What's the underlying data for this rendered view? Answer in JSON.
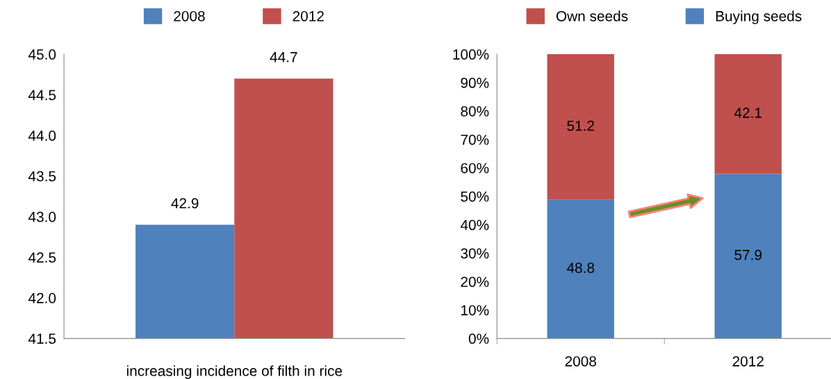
{
  "chart_data": [
    {
      "type": "bar",
      "categories": [
        "increasing incidence of filth in rice"
      ],
      "series": [
        {
          "name": "2008",
          "color": "#4f81bd",
          "values": [
            42.9
          ]
        },
        {
          "name": "2012",
          "color": "#c0504d",
          "values": [
            44.7
          ]
        }
      ],
      "ylim": [
        41.5,
        45.0
      ],
      "yticks": [
        {
          "value": 41.5,
          "label": "41.5"
        },
        {
          "value": 42.0,
          "label": "42.0"
        },
        {
          "value": 42.5,
          "label": "42.5"
        },
        {
          "value": 43.0,
          "label": "43.0"
        },
        {
          "value": 43.5,
          "label": "43.5"
        },
        {
          "value": 44.0,
          "label": "44.0"
        },
        {
          "value": 44.5,
          "label": "44.5"
        },
        {
          "value": 45.0,
          "label": "45.0"
        }
      ],
      "data_labels": true,
      "legend": "top",
      "grid": false
    },
    {
      "type": "bar",
      "stacked": true,
      "categories": [
        "2008",
        "2012"
      ],
      "series": [
        {
          "name": "Buying seeds",
          "color": "#4f81bd",
          "values": [
            48.8,
            57.9
          ]
        },
        {
          "name": "Own seeds",
          "color": "#c0504d",
          "values": [
            51.2,
            42.1
          ]
        }
      ],
      "ylim": [
        0,
        100
      ],
      "yticks": [
        {
          "value": 0,
          "label": "0%"
        },
        {
          "value": 10,
          "label": "10%"
        },
        {
          "value": 20,
          "label": "20%"
        },
        {
          "value": 30,
          "label": "30%"
        },
        {
          "value": 40,
          "label": "40%"
        },
        {
          "value": 50,
          "label": "50%"
        },
        {
          "value": 60,
          "label": "60%"
        },
        {
          "value": 70,
          "label": "70%"
        },
        {
          "value": 80,
          "label": "80%"
        },
        {
          "value": 90,
          "label": "90%"
        },
        {
          "value": 100,
          "label": "100%"
        }
      ],
      "data_labels": true,
      "legend": "top",
      "grid": false
    }
  ]
}
